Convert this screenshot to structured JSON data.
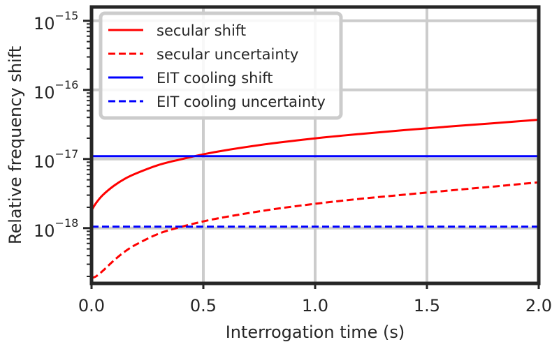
{
  "chart_data": {
    "type": "line",
    "title": "",
    "xlabel": "Interrogation time (s)",
    "ylabel": "Relative frequency shift",
    "xlim": [
      0.0,
      2.0
    ],
    "ylim_log10": [
      -18.8,
      -14.8
    ],
    "yscale": "log",
    "grid": true,
    "legend_position": "top-left",
    "x_ticks": [
      {
        "value": 0.0,
        "label": "0.0"
      },
      {
        "value": 0.5,
        "label": "0.5"
      },
      {
        "value": 1.0,
        "label": "1.0"
      },
      {
        "value": 1.5,
        "label": "1.5"
      },
      {
        "value": 2.0,
        "label": "2.0"
      }
    ],
    "y_ticks": [
      {
        "exp": -15,
        "base": "10",
        "sup": "−15"
      },
      {
        "exp": -16,
        "base": "10",
        "sup": "−16"
      },
      {
        "exp": -17,
        "base": "10",
        "sup": "−17"
      },
      {
        "exp": -18,
        "base": "10",
        "sup": "−18"
      }
    ],
    "series": [
      {
        "name": "secular shift",
        "color": "#ff0000",
        "dash": "solid",
        "x": [
          0.0,
          0.02,
          0.05,
          0.1,
          0.15,
          0.2,
          0.3,
          0.4,
          0.5,
          0.6,
          0.8,
          1.0,
          1.2,
          1.4,
          1.6,
          1.8,
          2.0
        ],
        "y": [
          1.8e-18,
          2.3e-18,
          3e-18,
          4.1e-18,
          5.2e-18,
          6.2e-18,
          8.2e-18,
          9.9e-18,
          1.17e-17,
          1.34e-17,
          1.67e-17,
          1.99e-17,
          2.3e-17,
          2.62e-17,
          2.95e-17,
          3.3e-17,
          3.7e-17
        ]
      },
      {
        "name": "secular uncertainty",
        "color": "#ff0000",
        "dash": "dashed",
        "x": [
          0.0,
          0.02,
          0.05,
          0.1,
          0.15,
          0.2,
          0.3,
          0.4,
          0.5,
          0.6,
          0.8,
          1.0,
          1.2,
          1.4,
          1.6,
          1.8,
          2.0
        ],
        "y": [
          1.9e-19,
          2e-19,
          2.4e-19,
          3.4e-19,
          4.6e-19,
          5.8e-19,
          8.3e-19,
          1.04e-18,
          1.25e-18,
          1.45e-18,
          1.85e-18,
          2.25e-18,
          2.65e-18,
          3.05e-18,
          3.5e-18,
          4e-18,
          4.6e-18
        ]
      },
      {
        "name": "EIT cooling shift",
        "color": "#0000ff",
        "dash": "solid",
        "x": [
          0.0,
          2.0
        ],
        "y": [
          1.1e-17,
          1.1e-17
        ]
      },
      {
        "name": "EIT cooling uncertainty",
        "color": "#0000ff",
        "dash": "dashed",
        "x": [
          0.0,
          2.0
        ],
        "y": [
          1.05e-18,
          1.05e-18
        ]
      }
    ]
  }
}
